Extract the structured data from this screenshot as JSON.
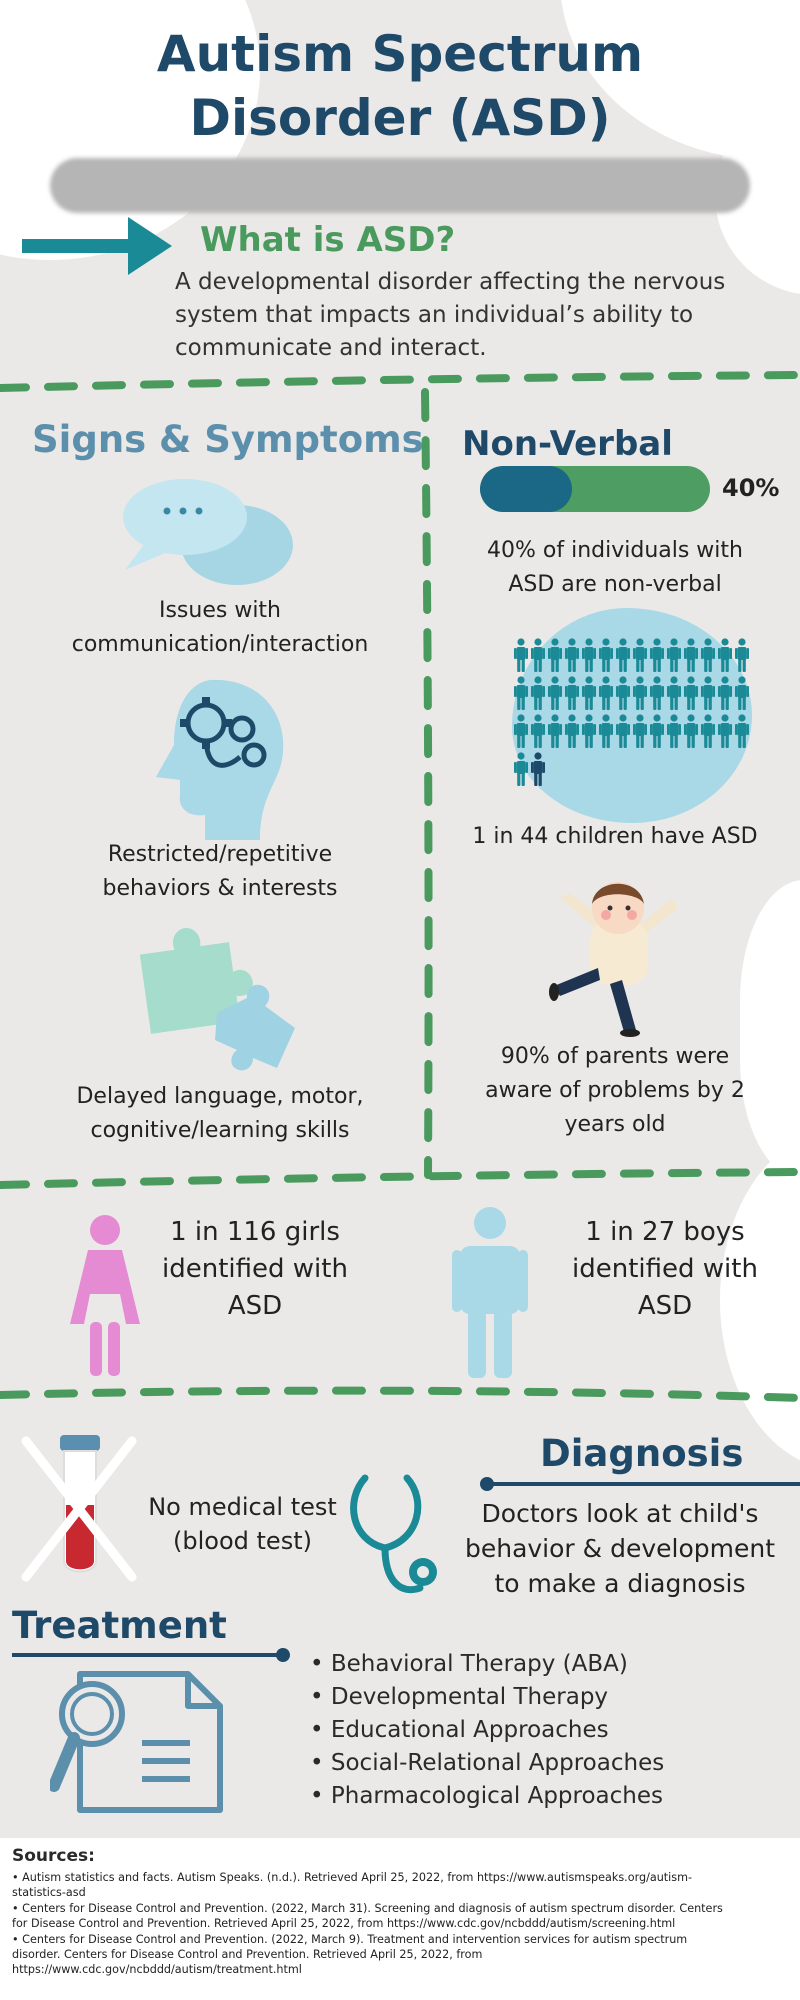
{
  "header": {
    "title_line1": "Autism Spectrum",
    "title_line2": "Disorder (ASD)"
  },
  "what_is": {
    "heading": "What is ASD?",
    "line1": "A developmental disorder affecting the nervous",
    "line2": "system that impacts an individual’s ability to",
    "line3": "communicate and interact."
  },
  "signs": {
    "heading": "Signs & Symptoms",
    "item1_line1": "Issues with",
    "item1_line2": "communication/interaction",
    "item2_line1": "Restricted/repetitive",
    "item2_line2": "behaviors & interests",
    "item3_line1": "Delayed language, motor,",
    "item3_line2": "cognitive/learning skills"
  },
  "non_verbal": {
    "heading": "Non-Verbal",
    "percent_label": "40%",
    "percent_value": 0.4,
    "desc_line1": "40% of individuals with",
    "desc_line2": "ASD are non-verbal",
    "ratio_text": "1 in 44 children have ASD",
    "parents_line1": "90% of parents were",
    "parents_line2": "aware of problems by 2",
    "parents_line3": "years old"
  },
  "gender": {
    "girls_line1": "1 in 116 girls",
    "girls_line2": "identified with",
    "girls_line3": "ASD",
    "boys_line1": "1 in 27 boys",
    "boys_line2": "identified with",
    "boys_line3": "ASD"
  },
  "diagnosis": {
    "heading": "Diagnosis",
    "test_line1": "No medical test",
    "test_line2": "(blood test)",
    "desc_line1": "Doctors look at child's",
    "desc_line2": "behavior & development",
    "desc_line3": "to make a diagnosis"
  },
  "treatment": {
    "heading": "Treatment",
    "items": [
      "• Behavioral Therapy (ABA)",
      "• Developmental Therapy",
      "• Educational Approaches",
      "• Social-Relational Approaches",
      "• Pharmacological Approaches"
    ]
  },
  "sources": {
    "heading": "Sources:",
    "lines": [
      "• Autism statistics and facts. Autism Speaks. (n.d.). Retrieved April 25, 2022, from https://www.autismspeaks.org/autism-",
      "statistics-asd",
      "• Centers for Disease Control and Prevention. (2022, March 31). Screening and diagnosis of autism spectrum disorder. Centers",
      "for Disease Control and Prevention. Retrieved April 25, 2022, from https://www.cdc.gov/ncbddd/autism/screening.html",
      "• Centers for Disease Control and Prevention. (2022, March 9). Treatment and intervention services for autism spectrum",
      "disorder. Centers for Disease Control and Prevention. Retrieved April 25, 2022, from",
      "https://www.cdc.gov/ncbddd/autism/treatment.html"
    ]
  },
  "colors": {
    "navy": "#1e4968",
    "green": "#4a9a5e",
    "teal": "#1a8a96",
    "light_blue": "#a9d8e6",
    "pink": "#e58bd4"
  }
}
